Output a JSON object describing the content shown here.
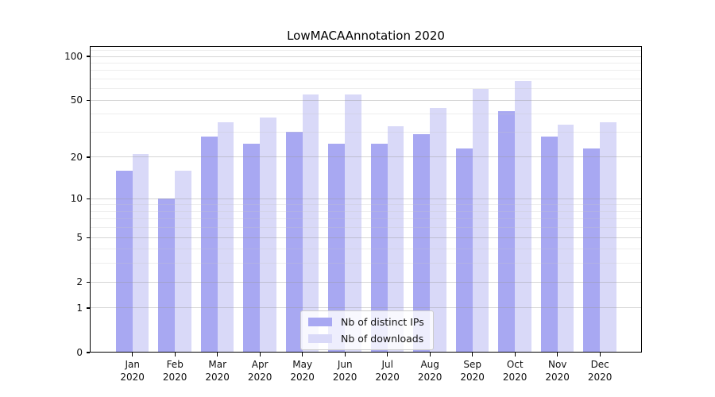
{
  "title": "LowMACAAnnotation 2020",
  "chart_data": {
    "type": "bar",
    "title": "LowMACAAnnotation 2020",
    "categories": [
      "Jan",
      "Feb",
      "Mar",
      "Apr",
      "May",
      "Jun",
      "Jul",
      "Aug",
      "Sep",
      "Oct",
      "Nov",
      "Dec"
    ],
    "x_tick_year": "2020",
    "series": [
      {
        "name": "Nb of distinct IPs",
        "color": "#a8a8f2",
        "values": [
          16,
          10,
          28,
          25,
          30,
          25,
          25,
          29,
          23,
          42,
          28,
          23
        ]
      },
      {
        "name": "Nb of downloads",
        "color": "#d9d9f8",
        "values": [
          21,
          16,
          35,
          38,
          55,
          55,
          33,
          44,
          60,
          68,
          34,
          35
        ]
      }
    ],
    "yscale": "log1p",
    "ylim": [
      0,
      118
    ],
    "y_major_ticks": [
      0,
      1,
      2,
      5,
      10,
      20,
      50,
      100
    ],
    "y_minor_gridlines": [
      3,
      4,
      6,
      7,
      8,
      9,
      30,
      40,
      60,
      70,
      80,
      90,
      110
    ],
    "grid": true,
    "legend_position": "lower center"
  },
  "colors": {
    "grid_major": "#d5d5d5",
    "grid_minor": "#eeeeee",
    "spine": "#000000",
    "tick_text": "#111111",
    "legend_border": "#cccccc"
  }
}
